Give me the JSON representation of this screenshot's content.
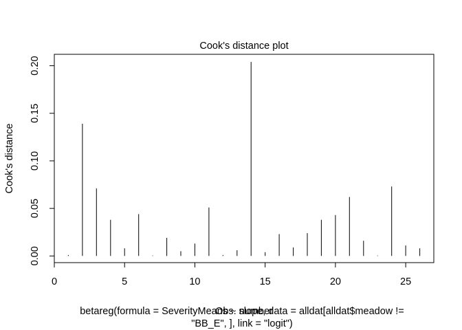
{
  "chart_data": {
    "type": "bar",
    "title": "Cook's distance plot",
    "xlabel": "Obs. number",
    "ylabel": "Cook's distance",
    "subtitle_lines": [
      "betareg(formula = SeverityMeans ~ slope, data = alldat[alldat$meadow !=",
      "\"BB_E\", ], link = \"logit\")"
    ],
    "x_range": [
      0,
      27
    ],
    "y_range": [
      -0.007,
      0.212
    ],
    "xticks": [
      0,
      5,
      10,
      15,
      20,
      25
    ],
    "yticks": [
      0.0,
      0.05,
      0.1,
      0.15,
      0.2
    ],
    "ytick_labels": [
      "0.00",
      "0.05",
      "0.10",
      "0.15",
      "0.20"
    ],
    "grid": false,
    "series": [
      {
        "x": [
          1,
          2,
          3,
          4,
          5,
          6,
          7,
          8,
          9,
          10,
          11,
          12,
          13,
          14,
          15,
          16,
          17,
          18,
          19,
          20,
          21,
          22,
          23,
          24,
          25,
          26
        ],
        "values": [
          0.001,
          0.139,
          0.071,
          0.038,
          0.008,
          0.044,
          0.0005,
          0.019,
          0.005,
          0.013,
          0.051,
          0.001,
          0.006,
          0.204,
          0.004,
          0.023,
          0.009,
          0.024,
          0.038,
          0.043,
          0.062,
          0.016,
          0.0005,
          0.073,
          0.011,
          0.008
        ]
      }
    ]
  }
}
